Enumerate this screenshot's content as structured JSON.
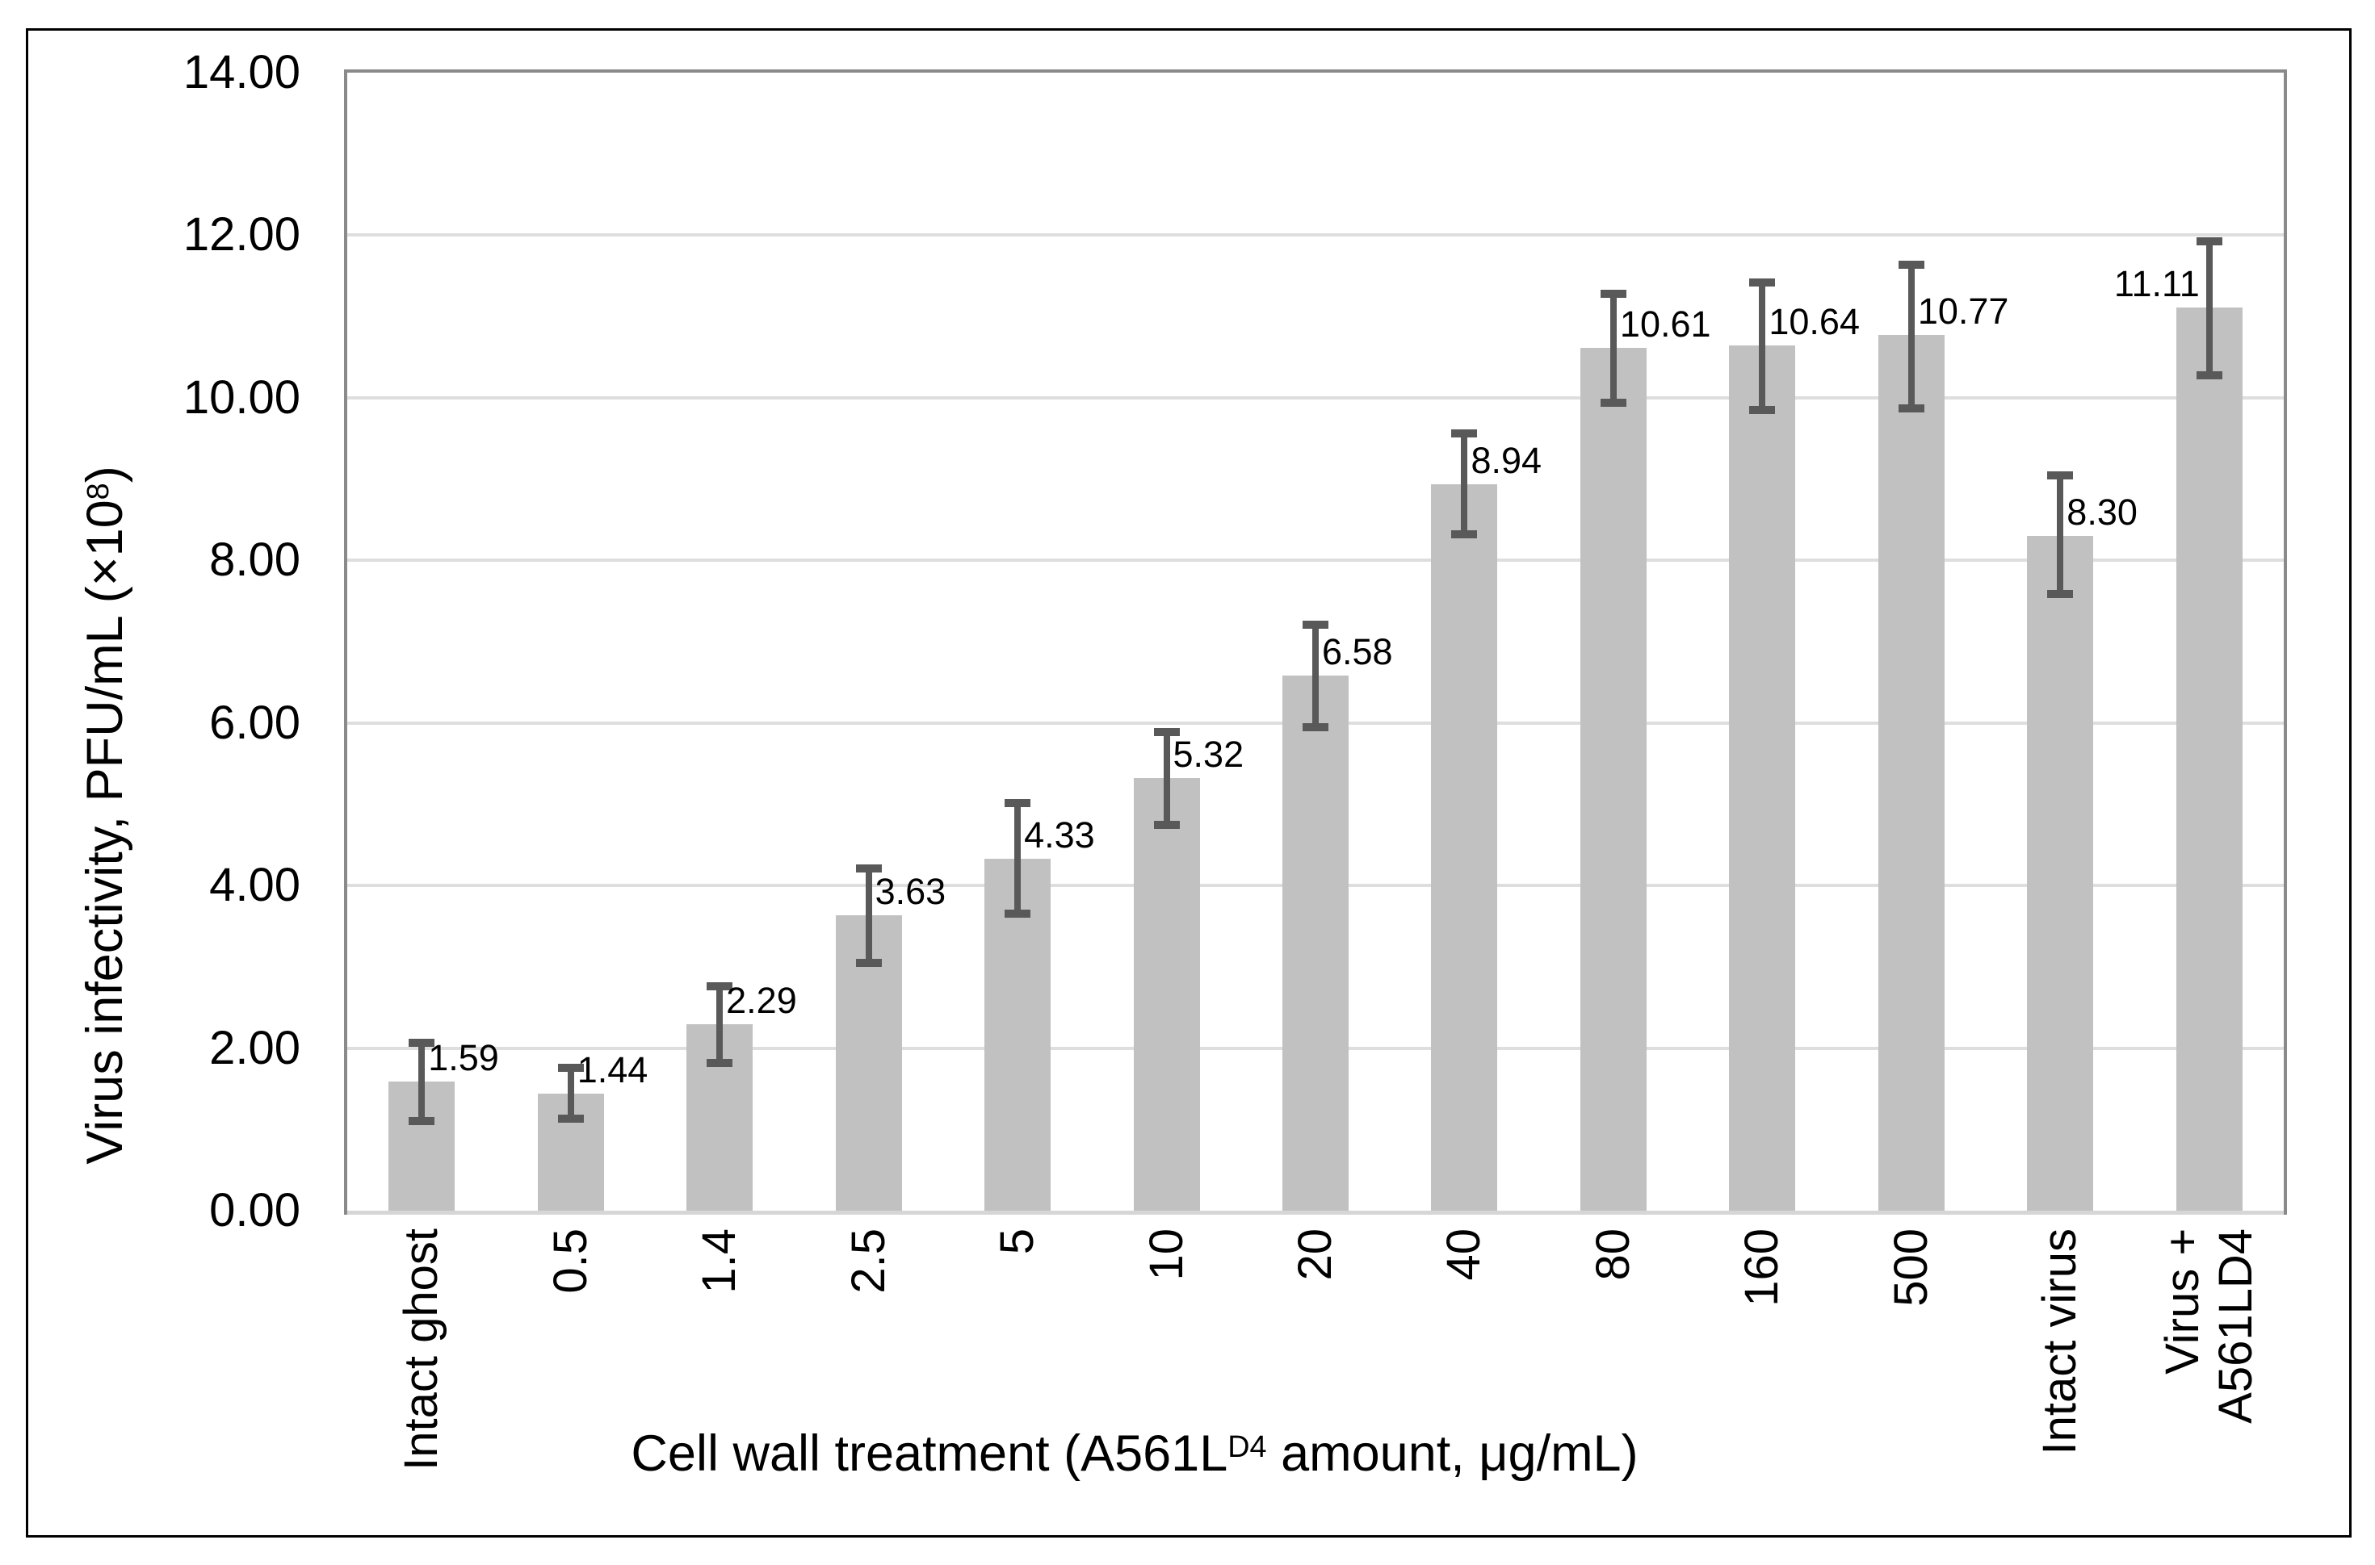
{
  "y_axis": {
    "title_pre": "Virus infectivity, PFU/mL (×10",
    "title_sup": "8",
    "title_post": ")",
    "tick_labels": [
      "0.00",
      "2.00",
      "4.00",
      "6.00",
      "8.00",
      "10.00",
      "12.00",
      "14.00"
    ]
  },
  "x_axis": {
    "title_pre": "Cell wall treatment (A561L",
    "title_sup": "D4",
    "title_post": " amount, μg/mL)"
  },
  "chart_data": {
    "type": "bar",
    "title": "",
    "xlabel": "Cell wall treatment (A561LD4 amount, μg/mL)",
    "ylabel": "Virus infectivity, PFU/mL (×10^8)",
    "ylim": [
      0,
      14
    ],
    "ytick_step": 2,
    "grid": true,
    "legend": "none",
    "categories": [
      "Intact ghost",
      "0.5",
      "1.4",
      "2.5",
      "5",
      "10",
      "20",
      "40",
      "80",
      "160",
      "500",
      "Intact virus",
      "Virus +\nA561LD4"
    ],
    "values": [
      1.59,
      1.44,
      2.29,
      3.63,
      4.33,
      5.32,
      6.58,
      8.94,
      10.61,
      10.64,
      10.77,
      8.3,
      11.11
    ],
    "data_labels": [
      "1.59",
      "1.44",
      "2.29",
      "3.63",
      "4.33",
      "5.32",
      "6.58",
      "8.94",
      "10.61",
      "10.64",
      "10.77",
      "8.30",
      "11.11"
    ],
    "error_up": [
      0.48,
      0.32,
      0.47,
      0.58,
      0.68,
      0.57,
      0.63,
      0.62,
      0.67,
      0.78,
      0.87,
      0.75,
      0.81
    ],
    "error_down": [
      0.49,
      0.31,
      0.47,
      0.58,
      0.68,
      0.57,
      0.63,
      0.62,
      0.67,
      0.79,
      0.9,
      0.71,
      0.83
    ],
    "label_side": [
      "right",
      "right",
      "right",
      "right",
      "right",
      "right",
      "right",
      "right",
      "right",
      "right",
      "right",
      "right",
      "left"
    ],
    "colors": {
      "bar_fill": "#C1C1C1",
      "error_bar": "#595959",
      "gridline": "#DEDEDE",
      "plot_border": "#8A8A8A",
      "baseline": "#D6D6D6",
      "frame_border": "#000000",
      "text": "#000000",
      "background": "#FFFFFF"
    }
  }
}
